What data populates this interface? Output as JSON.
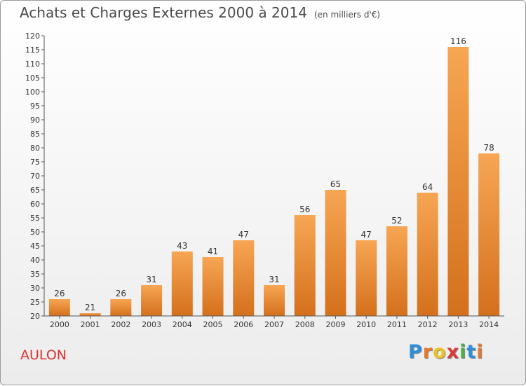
{
  "header": {
    "title": "Achats et Charges Externes 2000 à 2014",
    "unit": "(en milliers d'€)"
  },
  "footer": {
    "commune": "AULON",
    "logo_text": "Proxiti",
    "logo_colors": [
      "#2f8ed8",
      "#e8782a",
      "#e8c325",
      "#d93a3a",
      "#4cae4c",
      "#2f8ed8",
      "#e8782a"
    ]
  },
  "chart_data": {
    "type": "bar",
    "categories": [
      "2000",
      "2001",
      "2002",
      "2003",
      "2004",
      "2005",
      "2006",
      "2007",
      "2008",
      "2009",
      "2010",
      "2011",
      "2012",
      "2013",
      "2014"
    ],
    "values": [
      26,
      21,
      26,
      31,
      43,
      41,
      47,
      31,
      56,
      65,
      47,
      52,
      64,
      116,
      78
    ],
    "title": "Achats et Charges Externes 2000 à 2014",
    "ylim": [
      20,
      120
    ],
    "yticks": [
      20,
      25,
      30,
      35,
      40,
      45,
      50,
      55,
      60,
      65,
      70,
      75,
      80,
      85,
      90,
      95,
      100,
      105,
      110,
      115,
      120
    ],
    "grid": false,
    "bar_color_top": "#f7a654",
    "bar_color_bottom": "#d4701c"
  }
}
